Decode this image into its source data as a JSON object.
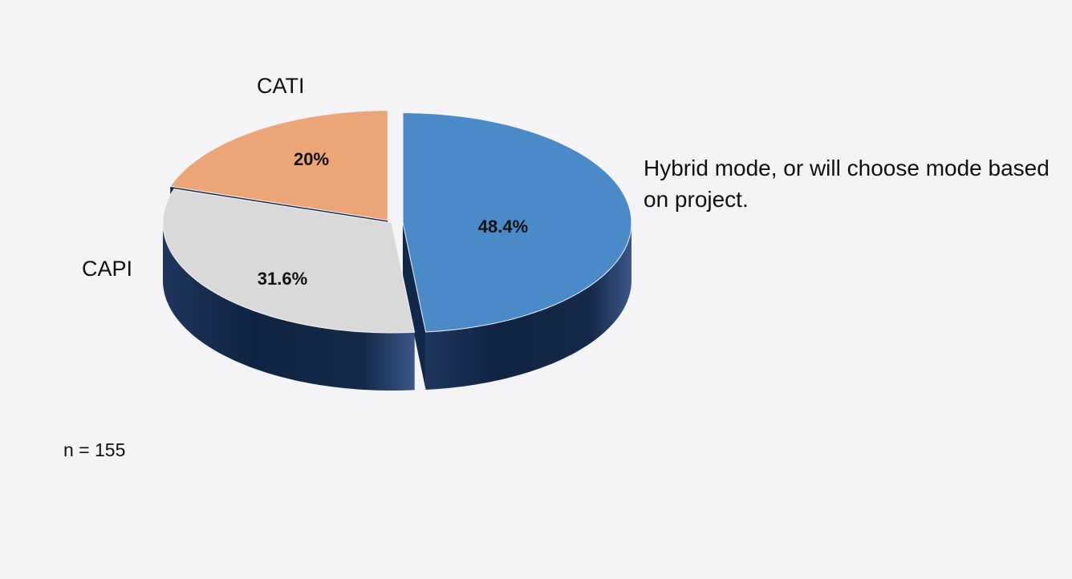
{
  "chart_data": {
    "type": "pie",
    "style": "3d-exploded",
    "slices": [
      {
        "label": "Hybrid mode, or will choose mode based on project.",
        "value": 48.4,
        "data_label": "48.4%",
        "color": "#4a8ac8"
      },
      {
        "label": "CAPI",
        "value": 31.6,
        "data_label": "31.6%",
        "color": "#d9d9d9"
      },
      {
        "label": "CATI",
        "value": 20,
        "data_label": "20%",
        "color": "#eba577"
      }
    ],
    "side_color": "#12284a",
    "footnote": "n = 155"
  }
}
